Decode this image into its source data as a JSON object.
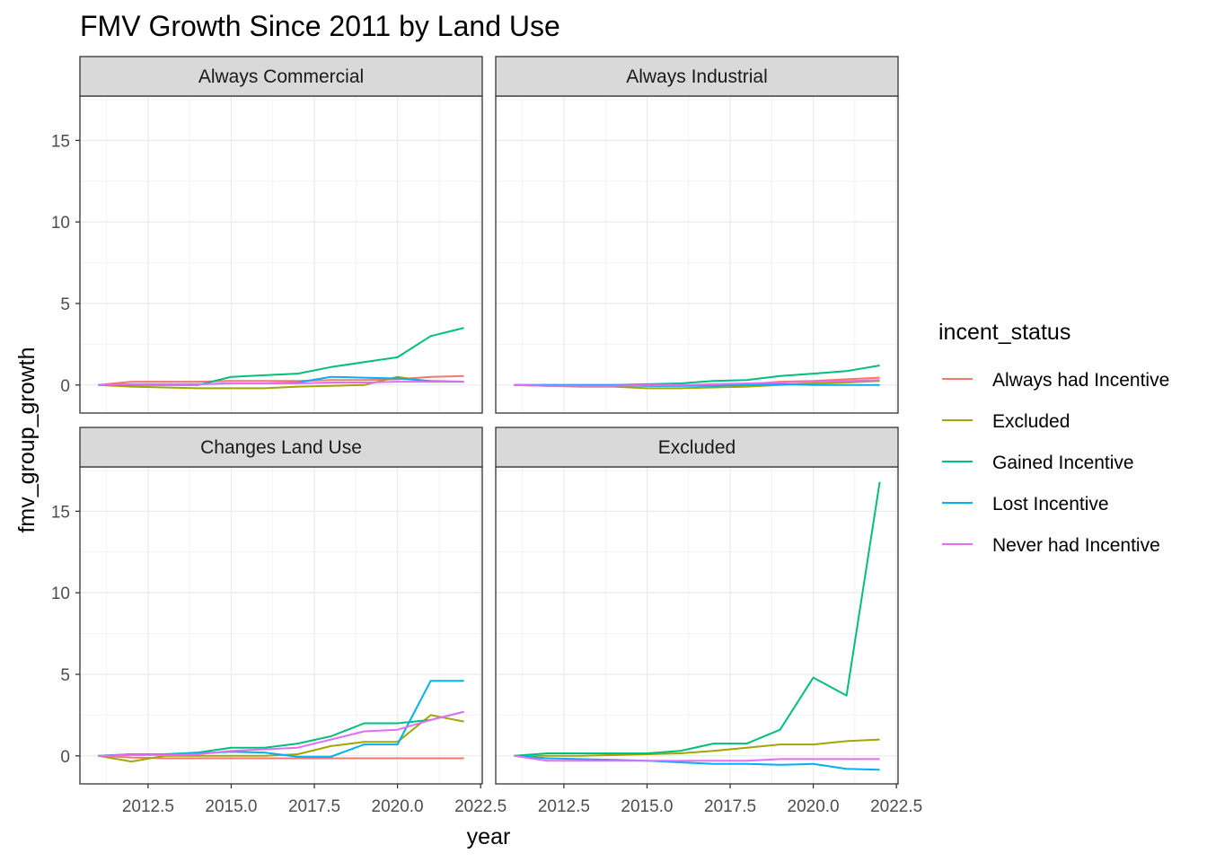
{
  "chart_data": {
    "type": "line",
    "title": "FMV Growth Since 2011 by Land Use",
    "xlabel": "year",
    "ylabel": "fmv_group_growth",
    "xlim": [
      2010.45,
      2022.55
    ],
    "ylim": [
      -1.72,
      17.72
    ],
    "x_ticks": [
      2012.5,
      2015.0,
      2017.5,
      2020.0,
      2022.5
    ],
    "x_tick_labels": [
      "2012.5",
      "2015.0",
      "2017.5",
      "2020.0",
      "2022.5"
    ],
    "y_ticks": [
      0,
      5,
      10,
      15
    ],
    "y_tick_labels": [
      "0",
      "5",
      "10",
      "15"
    ],
    "grid": true,
    "legend": {
      "title": "incent_status",
      "placement": "right",
      "entries": [
        {
          "name": "Always had Incentive",
          "color": "#F8766D"
        },
        {
          "name": "Excluded",
          "color": "#A3A500"
        },
        {
          "name": "Gained Incentive",
          "color": "#00BF7D"
        },
        {
          "name": "Lost Incentive",
          "color": "#00B0F6"
        },
        {
          "name": "Never had Incentive",
          "color": "#E76BF3"
        }
      ]
    },
    "x": [
      2011,
      2012,
      2013,
      2014,
      2015,
      2016,
      2017,
      2018,
      2019,
      2020,
      2021,
      2022
    ],
    "facets": [
      {
        "name": "Always Commercial",
        "series": [
          {
            "name": "Always had Incentive",
            "values": [
              0,
              0.2,
              0.2,
              0.2,
              0.25,
              0.25,
              0.25,
              0.3,
              0.3,
              0.35,
              0.5,
              0.55
            ]
          },
          {
            "name": "Excluded",
            "values": [
              0,
              -0.1,
              -0.15,
              -0.2,
              -0.2,
              -0.2,
              -0.1,
              -0.05,
              0,
              0.5,
              0.2,
              0.2
            ]
          },
          {
            "name": "Gained Incentive",
            "values": [
              0,
              0,
              0,
              0,
              0.5,
              0.6,
              0.7,
              1.1,
              1.4,
              1.7,
              3.0,
              3.5
            ]
          },
          {
            "name": "Lost Incentive",
            "values": [
              0,
              0.05,
              0.05,
              0.05,
              0.1,
              0.1,
              0.15,
              0.5,
              0.45,
              0.4,
              0.25,
              0.2
            ]
          },
          {
            "name": "Never had Incentive",
            "values": [
              0,
              0.05,
              0.05,
              0.05,
              0.1,
              0.1,
              0.1,
              0.15,
              0.15,
              0.2,
              0.2,
              0.2
            ]
          }
        ]
      },
      {
        "name": "Always Industrial",
        "series": [
          {
            "name": "Always had Incentive",
            "values": [
              0,
              -0.05,
              -0.05,
              -0.05,
              -0.05,
              -0.05,
              0,
              0.05,
              0.2,
              0.25,
              0.35,
              0.45
            ]
          },
          {
            "name": "Excluded",
            "values": [
              0,
              -0.05,
              -0.1,
              -0.1,
              -0.2,
              -0.2,
              -0.15,
              -0.1,
              0,
              0.1,
              0.15,
              0.25
            ]
          },
          {
            "name": "Gained Incentive",
            "values": [
              0,
              0,
              0,
              0,
              0.05,
              0.1,
              0.25,
              0.3,
              0.55,
              0.7,
              0.85,
              1.2
            ]
          },
          {
            "name": "Lost Incentive",
            "values": [
              0,
              0,
              0,
              0,
              -0.05,
              -0.05,
              -0.05,
              0,
              0.05,
              0,
              0,
              0
            ]
          },
          {
            "name": "Never had Incentive",
            "values": [
              0,
              -0.05,
              -0.05,
              -0.05,
              0,
              0,
              0.05,
              0.1,
              0.15,
              0.2,
              0.25,
              0.3
            ]
          }
        ]
      },
      {
        "name": "Changes Land Use",
        "series": [
          {
            "name": "Always had Incentive",
            "values": [
              0,
              -0.1,
              -0.15,
              -0.15,
              -0.15,
              -0.15,
              -0.15,
              -0.15,
              -0.15,
              -0.15,
              -0.15,
              -0.15
            ]
          },
          {
            "name": "Excluded",
            "values": [
              0,
              -0.35,
              0,
              0,
              0,
              0,
              0.1,
              0.6,
              0.85,
              0.85,
              2.5,
              2.1
            ]
          },
          {
            "name": "Gained Incentive",
            "values": [
              0,
              0.1,
              0.1,
              0.2,
              0.5,
              0.5,
              0.75,
              1.2,
              2.0,
              2.0,
              2.2,
              2.7
            ]
          },
          {
            "name": "Lost Incentive",
            "values": [
              0,
              0.1,
              0.1,
              0.15,
              0.25,
              0.2,
              -0.05,
              -0.05,
              0.7,
              0.7,
              4.6,
              4.6
            ]
          },
          {
            "name": "Never had Incentive",
            "values": [
              0,
              0.05,
              0.05,
              0.1,
              0.3,
              0.4,
              0.5,
              1.0,
              1.5,
              1.6,
              2.2,
              2.7
            ]
          }
        ]
      },
      {
        "name": "Excluded",
        "series": [
          {
            "name": "Excluded",
            "values": [
              0,
              0,
              0,
              0.05,
              0.1,
              0.15,
              0.3,
              0.5,
              0.7,
              0.7,
              0.9,
              1.0
            ]
          },
          {
            "name": "Gained Incentive",
            "values": [
              0,
              0.15,
              0.15,
              0.15,
              0.15,
              0.3,
              0.75,
              0.75,
              1.6,
              4.8,
              3.7,
              16.8
            ]
          },
          {
            "name": "Lost Incentive",
            "values": [
              0,
              -0.15,
              -0.2,
              -0.25,
              -0.3,
              -0.4,
              -0.5,
              -0.5,
              -0.55,
              -0.5,
              -0.8,
              -0.85
            ]
          },
          {
            "name": "Never had Incentive",
            "values": [
              0,
              -0.3,
              -0.3,
              -0.3,
              -0.3,
              -0.3,
              -0.3,
              -0.3,
              -0.2,
              -0.2,
              -0.2,
              -0.2
            ]
          }
        ]
      }
    ]
  }
}
